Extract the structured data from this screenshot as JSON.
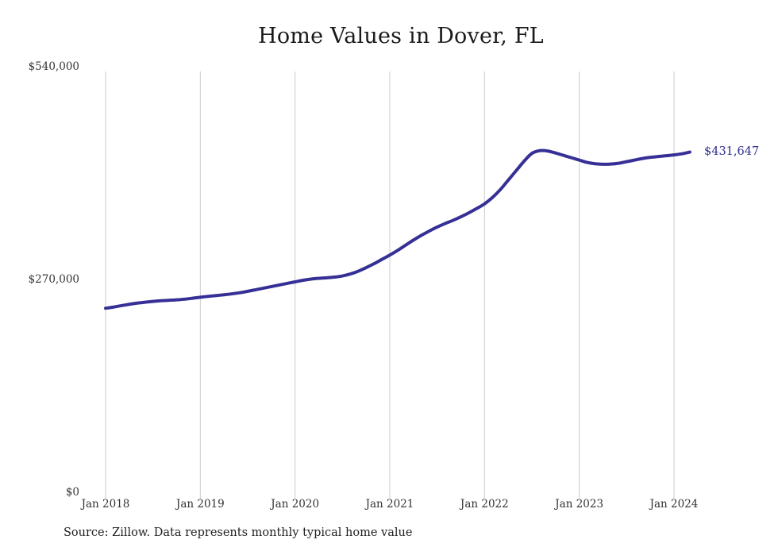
{
  "chart": {
    "title": "Home Values in Dover, FL",
    "colors": {
      "line": "#363096",
      "grid": "#cccccc",
      "title_text": "#1a1a1a",
      "tick_text": "#333333",
      "annotation_text": "#2f2d8e",
      "background": "#ffffff"
    }
  },
  "chart_data": {
    "type": "line",
    "title": "Home Values in Dover, FL",
    "series_name": "Monthly typical home value",
    "x": [
      "2018-01",
      "2018-02",
      "2018-03",
      "2018-04",
      "2018-05",
      "2018-06",
      "2018-07",
      "2018-08",
      "2018-09",
      "2018-10",
      "2018-11",
      "2018-12",
      "2019-01",
      "2019-02",
      "2019-03",
      "2019-04",
      "2019-05",
      "2019-06",
      "2019-07",
      "2019-08",
      "2019-09",
      "2019-10",
      "2019-11",
      "2019-12",
      "2020-01",
      "2020-02",
      "2020-03",
      "2020-04",
      "2020-05",
      "2020-06",
      "2020-07",
      "2020-08",
      "2020-09",
      "2020-10",
      "2020-11",
      "2020-12",
      "2021-01",
      "2021-02",
      "2021-03",
      "2021-04",
      "2021-05",
      "2021-06",
      "2021-07",
      "2021-08",
      "2021-09",
      "2021-10",
      "2021-11",
      "2021-12",
      "2022-01",
      "2022-02",
      "2022-03",
      "2022-04",
      "2022-05",
      "2022-06",
      "2022-07",
      "2022-08",
      "2022-09",
      "2022-10",
      "2022-11",
      "2022-12",
      "2023-01",
      "2023-02",
      "2023-03",
      "2023-04",
      "2023-05",
      "2023-06",
      "2023-07",
      "2023-08",
      "2023-09",
      "2023-10",
      "2023-11",
      "2023-12",
      "2024-01",
      "2024-02",
      "2024-03"
    ],
    "values": [
      233500,
      235000,
      236800,
      238500,
      240000,
      241200,
      242200,
      243000,
      243600,
      244200,
      245000,
      246200,
      247500,
      248600,
      249600,
      250600,
      251800,
      253200,
      255000,
      257000,
      259000,
      261000,
      263000,
      265000,
      267000,
      269000,
      270500,
      271500,
      272200,
      273000,
      274500,
      277000,
      280500,
      285000,
      290000,
      295500,
      301000,
      307000,
      313500,
      320000,
      326000,
      331500,
      336500,
      341000,
      345000,
      349500,
      354500,
      360000,
      366000,
      374000,
      384000,
      396000,
      408000,
      420000,
      430000,
      433500,
      433000,
      430500,
      427500,
      424500,
      421500,
      418500,
      416800,
      416200,
      416500,
      417500,
      419500,
      421500,
      423500,
      425000,
      426000,
      427000,
      428000,
      429500,
      431647
    ],
    "end_annotation": "$431,647",
    "x_tick_labels": [
      "Jan 2018",
      "Jan 2019",
      "Jan 2020",
      "Jan 2021",
      "Jan 2022",
      "Jan 2023",
      "Jan 2024"
    ],
    "y_tick_labels": [
      "$0",
      "$270,000",
      "$540,000"
    ],
    "y_ticks": [
      0,
      270000,
      540000
    ],
    "ylim": [
      0,
      540000
    ],
    "grid": "vertical-only",
    "legend": "none",
    "source": "Source: Zillow. Data represents monthly typical home value"
  }
}
